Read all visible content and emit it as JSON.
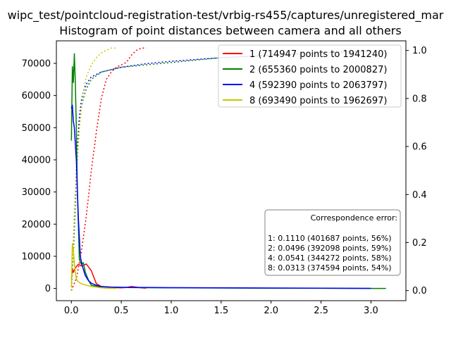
{
  "chart_data": {
    "type": "line",
    "title": "wipc_test/pointcloud-registration-test/vrbig-rs455/captures/unregistered_mar",
    "subtitle": "Histogram of point distances between camera and all others",
    "xlim": [
      -0.15,
      3.35
    ],
    "ylim": [
      -3800,
      77000
    ],
    "y2lim": [
      -0.042,
      1.04
    ],
    "xticks": [
      "0.0",
      "0.5",
      "1.0",
      "1.5",
      "2.0",
      "2.5",
      "3.0"
    ],
    "yticks": [
      "0",
      "10000",
      "20000",
      "30000",
      "40000",
      "50000",
      "60000",
      "70000"
    ],
    "y2ticks": [
      "0.0",
      "0.2",
      "0.4",
      "0.6",
      "0.8",
      "1.0"
    ],
    "legend_position": "upper right",
    "grid": false,
    "series": [
      {
        "name": "1 (714947 points to 1941240)",
        "color": "#ff0000",
        "hist": {
          "x": [
            0.0,
            0.01,
            0.02,
            0.03,
            0.05,
            0.07,
            0.1,
            0.15,
            0.2,
            0.25,
            0.3,
            0.4,
            0.5,
            0.55,
            0.6,
            0.65,
            0.7,
            0.75
          ],
          "y": [
            3000,
            6000,
            5000,
            5800,
            6800,
            7500,
            7000,
            7600,
            5500,
            1500,
            600,
            300,
            200,
            300,
            600,
            400,
            200,
            100
          ]
        },
        "cdf": {
          "x": [
            0.0,
            0.05,
            0.1,
            0.15,
            0.2,
            0.25,
            0.3,
            0.35,
            0.4,
            0.45,
            0.5,
            0.55,
            0.6,
            0.65,
            0.7,
            0.75
          ],
          "y": [
            0.0,
            0.05,
            0.16,
            0.31,
            0.5,
            0.66,
            0.8,
            0.88,
            0.91,
            0.93,
            0.94,
            0.95,
            0.98,
            1.0,
            1.01,
            1.01
          ]
        }
      },
      {
        "name": "2 (655360 points to 2000827)",
        "color": "#008000",
        "hist": {
          "x": [
            0.0,
            0.01,
            0.02,
            0.03,
            0.04,
            0.05,
            0.06,
            0.08,
            0.1,
            0.12,
            0.14,
            0.16,
            0.18,
            0.2,
            0.25,
            0.3,
            0.4,
            0.5,
            0.7,
            1.0,
            1.5,
            2.0,
            2.5,
            3.0,
            3.15
          ],
          "y": [
            46000,
            69000,
            64000,
            73000,
            64000,
            50000,
            30000,
            9000,
            7500,
            8000,
            5000,
            3500,
            2000,
            1000,
            700,
            500,
            400,
            300,
            250,
            200,
            150,
            100,
            50,
            20,
            0
          ]
        },
        "cdf": {
          "x": [
            0.0,
            0.02,
            0.04,
            0.06,
            0.08,
            0.1,
            0.12,
            0.15,
            0.2,
            0.3,
            0.5,
            0.75,
            1.0,
            1.5,
            2.0,
            2.5,
            3.0,
            3.15
          ],
          "y": [
            0.0,
            0.15,
            0.35,
            0.55,
            0.68,
            0.76,
            0.8,
            0.84,
            0.88,
            0.91,
            0.93,
            0.94,
            0.95,
            0.97,
            0.98,
            0.99,
            0.995,
            1.0
          ]
        }
      },
      {
        "name": "4 (592390 points to 2063797)",
        "color": "#0000ff",
        "hist": {
          "x": [
            0.0,
            0.01,
            0.02,
            0.03,
            0.05,
            0.07,
            0.09,
            0.11,
            0.14,
            0.17,
            0.2,
            0.25,
            0.3,
            0.4,
            0.5,
            0.75,
            1.0,
            1.5,
            2.0,
            2.5,
            3.0
          ],
          "y": [
            56000,
            57000,
            52000,
            50000,
            40000,
            22000,
            10000,
            7000,
            4000,
            2500,
            1600,
            1000,
            600,
            400,
            350,
            300,
            250,
            200,
            150,
            80,
            30
          ]
        },
        "cdf": {
          "x": [
            0.0,
            0.02,
            0.04,
            0.06,
            0.08,
            0.1,
            0.12,
            0.15,
            0.2,
            0.3,
            0.5,
            0.75,
            1.0,
            1.5,
            2.0,
            2.5,
            3.0
          ],
          "y": [
            0.0,
            0.2,
            0.4,
            0.6,
            0.72,
            0.79,
            0.83,
            0.86,
            0.89,
            0.91,
            0.93,
            0.945,
            0.955,
            0.97,
            0.98,
            0.99,
            1.0
          ]
        }
      },
      {
        "name": "8 (693490 points to 1962697)",
        "color": "#c8c800",
        "hist": {
          "x": [
            0.0,
            0.01,
            0.02,
            0.03,
            0.04,
            0.05,
            0.07,
            0.1,
            0.15,
            0.2,
            0.25,
            0.3,
            0.35,
            0.4,
            0.45
          ],
          "y": [
            300,
            14000,
            12000,
            8000,
            5000,
            3000,
            2000,
            1500,
            1000,
            600,
            400,
            200,
            100,
            60,
            0
          ]
        },
        "cdf": {
          "x": [
            0.0,
            0.02,
            0.04,
            0.06,
            0.08,
            0.1,
            0.12,
            0.15,
            0.2,
            0.25,
            0.3,
            0.35,
            0.4,
            0.45
          ],
          "y": [
            0.0,
            0.2,
            0.4,
            0.56,
            0.67,
            0.76,
            0.83,
            0.89,
            0.94,
            0.97,
            0.99,
            1.0,
            1.01,
            1.01
          ]
        }
      }
    ],
    "annotation": {
      "heading": "Correspondence error:",
      "lines": [
        "1: 0.1110 (401687 points, 56%)",
        "2: 0.0496 (392098 points, 59%)",
        "4: 0.0541 (344272 points, 58%)",
        "8: 0.0313 (374594 points, 54%)"
      ]
    }
  }
}
